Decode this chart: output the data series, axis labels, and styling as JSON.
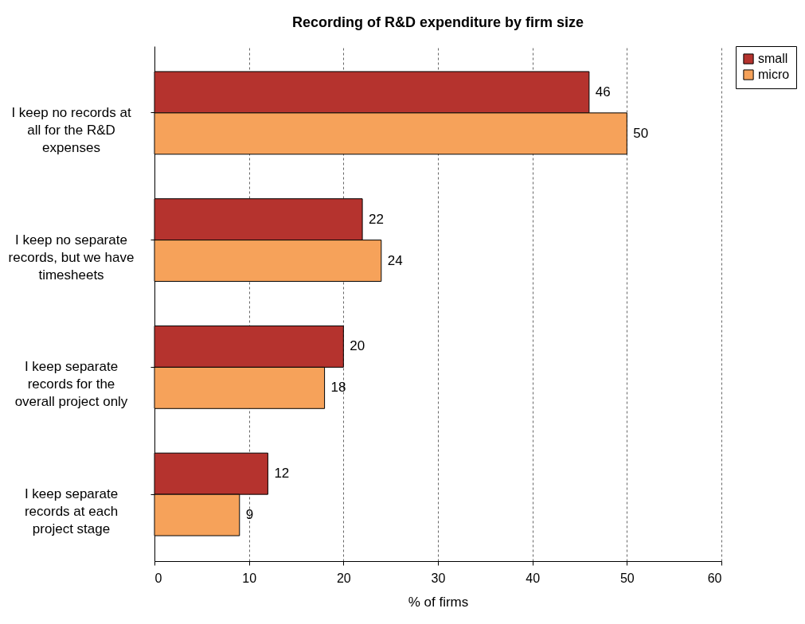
{
  "chart_data": {
    "type": "bar",
    "orientation": "horizontal",
    "title": "Recording of R&D expenditure by firm size",
    "xlabel": "% of firms",
    "categories": [
      "I keep no records at all for the R&D expenses",
      "I keep no separate records, but we have timesheets",
      "I keep separate records for the overall project only",
      "I keep separate records at each project stage"
    ],
    "series": [
      {
        "name": "small",
        "color": "#b5332e",
        "values": [
          46,
          22,
          20,
          12
        ]
      },
      {
        "name": "micro",
        "color": "#f6a25a",
        "values": [
          50,
          24,
          18,
          9
        ]
      }
    ],
    "xlim": [
      0,
      60
    ],
    "xticks": [
      0,
      10,
      20,
      30,
      40,
      50,
      60
    ],
    "grid": "x",
    "legend": "right",
    "data_labels": true
  }
}
